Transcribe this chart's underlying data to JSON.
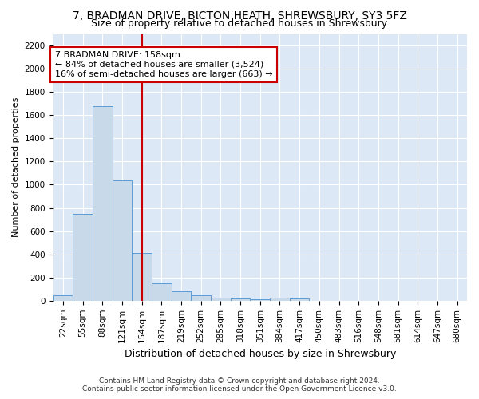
{
  "title1": "7, BRADMAN DRIVE, BICTON HEATH, SHREWSBURY, SY3 5FZ",
  "title2": "Size of property relative to detached houses in Shrewsbury",
  "xlabel": "Distribution of detached houses by size in Shrewsbury",
  "ylabel": "Number of detached properties",
  "categories": [
    "22sqm",
    "55sqm",
    "88sqm",
    "121sqm",
    "154sqm",
    "187sqm",
    "219sqm",
    "252sqm",
    "285sqm",
    "318sqm",
    "351sqm",
    "384sqm",
    "417sqm",
    "450sqm",
    "483sqm",
    "516sqm",
    "548sqm",
    "581sqm",
    "614sqm",
    "647sqm",
    "680sqm"
  ],
  "values": [
    50,
    750,
    1675,
    1040,
    410,
    150,
    80,
    45,
    25,
    20,
    15,
    25,
    18,
    0,
    0,
    0,
    0,
    0,
    0,
    0,
    0
  ],
  "vline_index": 4,
  "bar_color": "#c8daea",
  "bar_edge_color": "#5b9bd5",
  "vline_color": "#cc0000",
  "annotation_text": "7 BRADMAN DRIVE: 158sqm\n← 84% of detached houses are smaller (3,524)\n16% of semi-detached houses are larger (663) →",
  "annotation_box_facecolor": "white",
  "annotation_box_edgecolor": "#cc0000",
  "ylim": [
    0,
    2300
  ],
  "yticks": [
    0,
    200,
    400,
    600,
    800,
    1000,
    1200,
    1400,
    1600,
    1800,
    2000,
    2200
  ],
  "footer1": "Contains HM Land Registry data © Crown copyright and database right 2024.",
  "footer2": "Contains public sector information licensed under the Open Government Licence v3.0.",
  "bg_color": "#ffffff",
  "plot_bg_color": "#dce8f5",
  "grid_color": "#ffffff",
  "title1_fontsize": 10,
  "title2_fontsize": 9,
  "xlabel_fontsize": 9,
  "ylabel_fontsize": 8,
  "tick_fontsize": 7.5,
  "annotation_fontsize": 8
}
